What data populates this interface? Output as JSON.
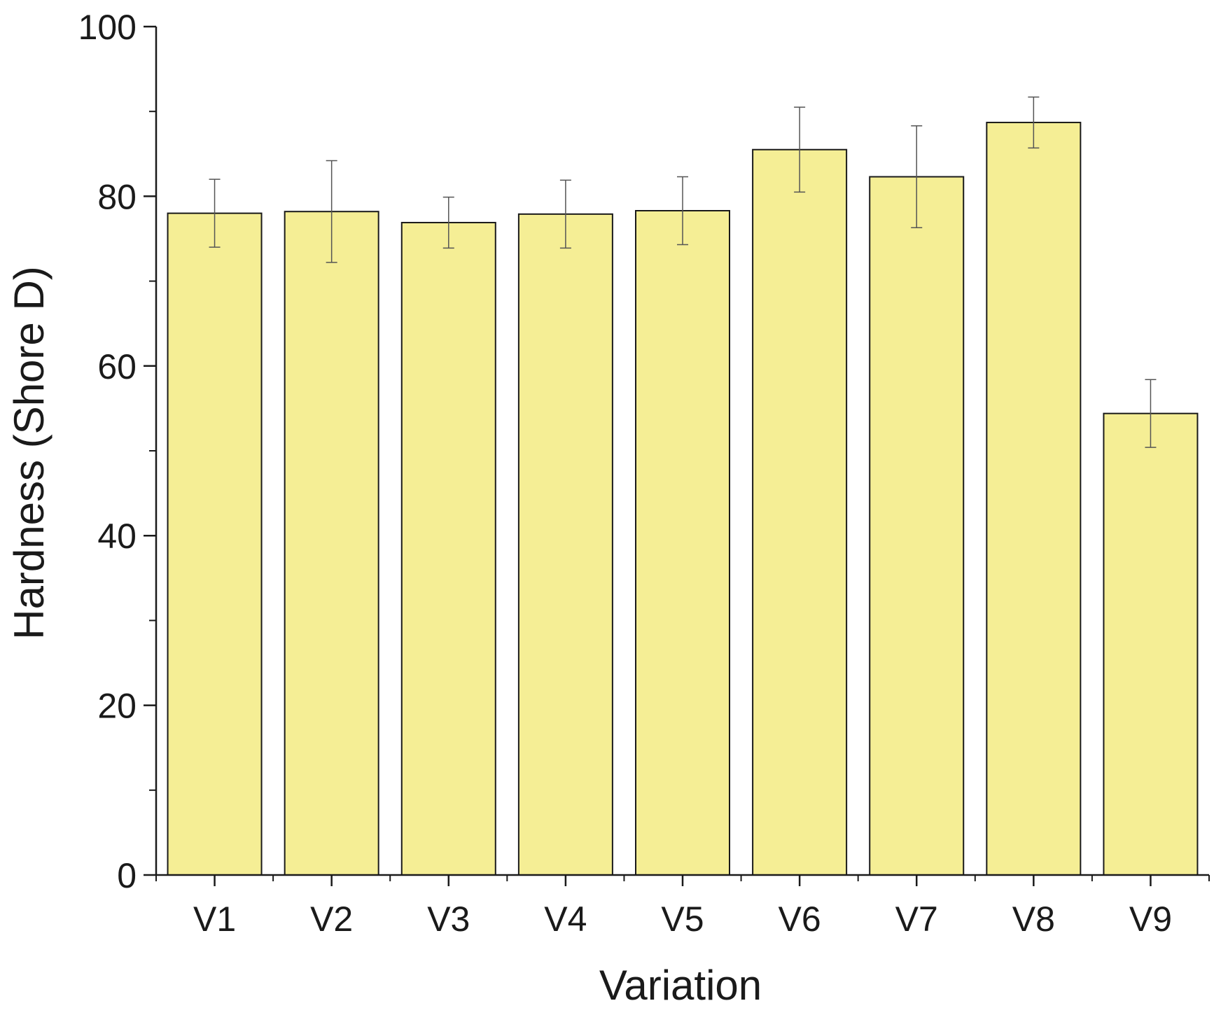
{
  "chart_data": {
    "type": "bar",
    "title": "",
    "xlabel": "Variation",
    "ylabel": "Hardness (Shore D)",
    "categories": [
      "V1",
      "V2",
      "V3",
      "V4",
      "V5",
      "V6",
      "V7",
      "V8",
      "V9"
    ],
    "values": [
      78.0,
      78.2,
      76.9,
      77.9,
      78.3,
      85.5,
      82.3,
      88.7,
      54.4
    ],
    "error": [
      4.0,
      6.0,
      3.0,
      4.0,
      4.0,
      5.0,
      6.0,
      3.0,
      4.0
    ],
    "ylim": [
      0,
      100
    ],
    "yticks": [
      0,
      20,
      40,
      60,
      80,
      100
    ],
    "ytick_labels": [
      "0",
      "20",
      "40",
      "60",
      "80",
      "100"
    ],
    "y_minor_step": 10,
    "grid": false,
    "legend": "none",
    "colors": {
      "bar_fill": "#f5ee95",
      "bar_stroke": "#1a1a1a",
      "errorbar": "#555555",
      "axis": "#1a1a1a"
    }
  }
}
